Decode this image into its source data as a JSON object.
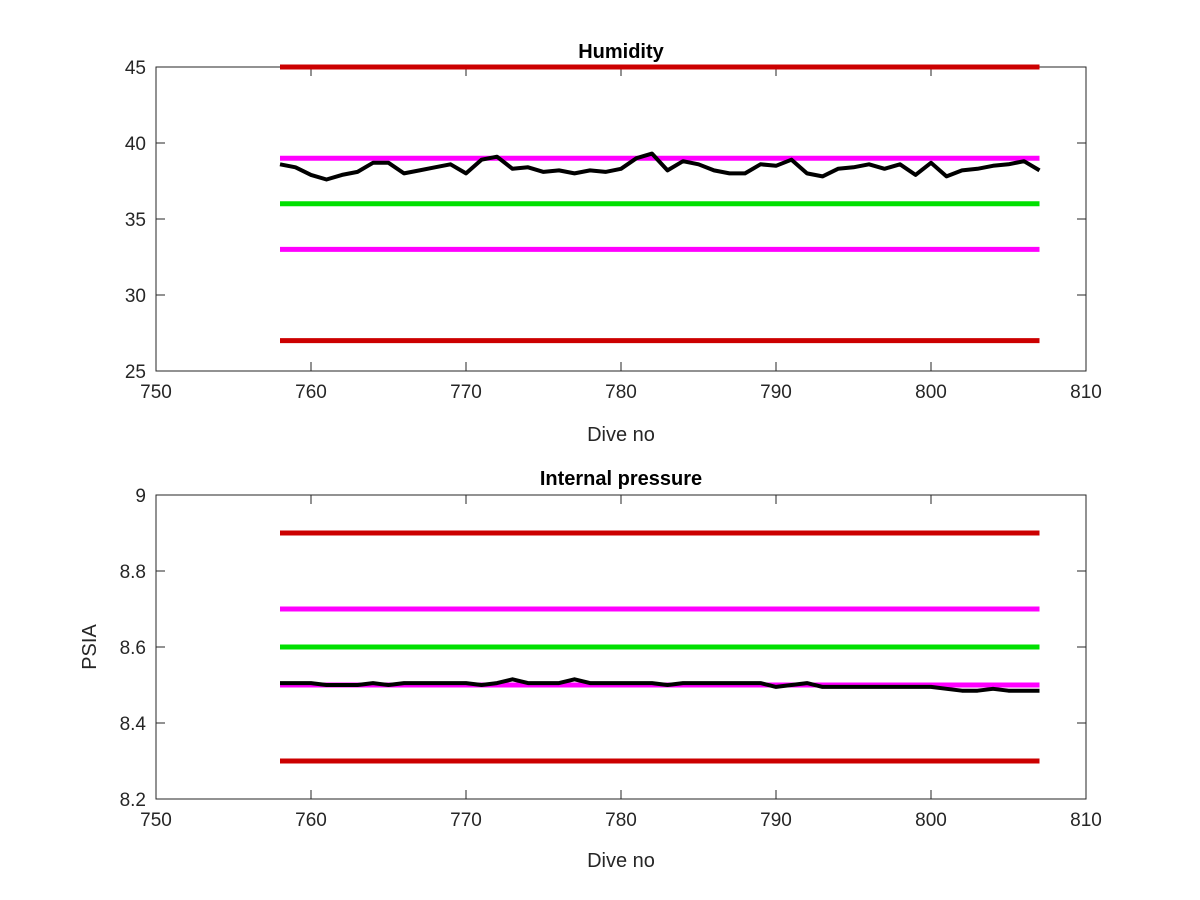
{
  "colors": {
    "limit_red": "#cc0000",
    "limit_magenta": "#ff00ff",
    "target_green": "#00e000",
    "data_black": "#000000"
  },
  "chart_data": [
    {
      "type": "line",
      "title": "Humidity",
      "xlabel": "Dive no",
      "ylabel": "",
      "xlim": [
        750,
        810
      ],
      "ylim": [
        25,
        45
      ],
      "xticks": [
        750,
        760,
        770,
        780,
        790,
        800,
        810
      ],
      "yticks": [
        25,
        30,
        35,
        40,
        45
      ],
      "xtick_labels": [
        "750",
        "760",
        "770",
        "780",
        "790",
        "800",
        "810"
      ],
      "ytick_labels": [
        "25",
        "30",
        "35",
        "40",
        "45"
      ],
      "grid": false,
      "reference_lines": [
        {
          "y": 45,
          "x": [
            758,
            807
          ],
          "color": "limit_red"
        },
        {
          "y": 27,
          "x": [
            758,
            807
          ],
          "color": "limit_red"
        },
        {
          "y": 39,
          "x": [
            758,
            807
          ],
          "color": "limit_magenta"
        },
        {
          "y": 33,
          "x": [
            758,
            807
          ],
          "color": "limit_magenta"
        },
        {
          "y": 36,
          "x": [
            758,
            807
          ],
          "color": "target_green"
        }
      ],
      "series": [
        {
          "color": "data_black",
          "x": [
            758,
            759,
            760,
            761,
            762,
            763,
            764,
            765,
            766,
            767,
            768,
            769,
            770,
            771,
            772,
            773,
            774,
            775,
            776,
            777,
            778,
            779,
            780,
            781,
            782,
            783,
            784,
            785,
            786,
            787,
            788,
            789,
            790,
            791,
            792,
            793,
            794,
            795,
            796,
            797,
            798,
            799,
            800,
            801,
            802,
            803,
            804,
            805,
            806,
            807
          ],
          "y": [
            38.6,
            38.4,
            37.9,
            37.6,
            37.9,
            38.1,
            38.7,
            38.7,
            38.0,
            38.2,
            38.4,
            38.6,
            38.0,
            38.9,
            39.1,
            38.3,
            38.4,
            38.1,
            38.2,
            38.0,
            38.2,
            38.1,
            38.3,
            39.0,
            39.3,
            38.2,
            38.8,
            38.6,
            38.2,
            38.0,
            38.0,
            38.6,
            38.5,
            38.9,
            38.0,
            37.8,
            38.3,
            38.4,
            38.6,
            38.3,
            38.6,
            37.9,
            38.7,
            37.8,
            38.2,
            38.3,
            38.5,
            38.6,
            38.8,
            38.2
          ]
        }
      ]
    },
    {
      "type": "line",
      "title": "Internal pressure",
      "xlabel": "Dive no",
      "ylabel": "PSIA",
      "xlim": [
        750,
        810
      ],
      "ylim": [
        8.2,
        9
      ],
      "xticks": [
        750,
        760,
        770,
        780,
        790,
        800,
        810
      ],
      "yticks": [
        8.2,
        8.4,
        8.6,
        8.8,
        9
      ],
      "xtick_labels": [
        "750",
        "760",
        "770",
        "780",
        "790",
        "800",
        "810"
      ],
      "ytick_labels": [
        "8.2",
        "8.4",
        "8.6",
        "8.8",
        "9"
      ],
      "grid": false,
      "reference_lines": [
        {
          "y": 8.9,
          "x": [
            758,
            807
          ],
          "color": "limit_red"
        },
        {
          "y": 8.3,
          "x": [
            758,
            807
          ],
          "color": "limit_red"
        },
        {
          "y": 8.7,
          "x": [
            758,
            807
          ],
          "color": "limit_magenta"
        },
        {
          "y": 8.5,
          "x": [
            758,
            807
          ],
          "color": "limit_magenta"
        },
        {
          "y": 8.6,
          "x": [
            758,
            807
          ],
          "color": "target_green"
        }
      ],
      "series": [
        {
          "color": "data_black",
          "x": [
            758,
            759,
            760,
            761,
            762,
            763,
            764,
            765,
            766,
            767,
            768,
            769,
            770,
            771,
            772,
            773,
            774,
            775,
            776,
            777,
            778,
            779,
            780,
            781,
            782,
            783,
            784,
            785,
            786,
            787,
            788,
            789,
            790,
            791,
            792,
            793,
            794,
            795,
            796,
            797,
            798,
            799,
            800,
            801,
            802,
            803,
            804,
            805,
            806,
            807
          ],
          "y": [
            8.505,
            8.505,
            8.505,
            8.5,
            8.5,
            8.5,
            8.505,
            8.5,
            8.505,
            8.505,
            8.505,
            8.505,
            8.505,
            8.5,
            8.505,
            8.515,
            8.505,
            8.505,
            8.505,
            8.515,
            8.505,
            8.505,
            8.505,
            8.505,
            8.505,
            8.5,
            8.505,
            8.505,
            8.505,
            8.505,
            8.505,
            8.505,
            8.495,
            8.5,
            8.505,
            8.495,
            8.495,
            8.495,
            8.495,
            8.495,
            8.495,
            8.495,
            8.495,
            8.49,
            8.485,
            8.485,
            8.49,
            8.485,
            8.485,
            8.485
          ]
        }
      ]
    }
  ]
}
